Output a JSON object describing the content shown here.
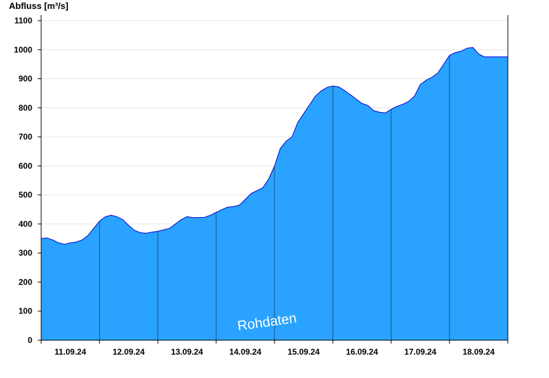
{
  "chart_data": {
    "type": "area",
    "ylabel": "Abfluss [m³/s]",
    "ylim": [
      0,
      1150
    ],
    "yticks": [
      0,
      100,
      200,
      300,
      400,
      500,
      600,
      700,
      800,
      900,
      1000,
      1100
    ],
    "xlim": [
      0,
      8
    ],
    "x_tick_labels": [
      "11.09.24",
      "12.09.24",
      "13.09.24",
      "14.09.24",
      "15.09.24",
      "16.09.24",
      "17.09.24",
      "18.09.24"
    ],
    "day_boundaries": [
      1,
      2,
      3,
      4,
      5,
      6,
      7
    ],
    "grid": true,
    "annotation": "Rohdaten",
    "colors": {
      "fill": "#29a3ff",
      "line": "#0000cc",
      "divider": "#1a4f80",
      "grid": "#e6e6e6"
    },
    "series": [
      {
        "x": [
          0,
          0.1,
          0.2,
          0.3,
          0.4,
          0.5,
          0.6,
          0.7,
          0.8,
          0.9,
          1.0,
          1.1,
          1.2,
          1.3,
          1.4,
          1.5,
          1.6,
          1.7,
          1.8,
          1.9,
          2.0,
          2.1,
          2.2,
          2.3,
          2.4,
          2.5,
          2.6,
          2.7,
          2.8,
          2.9,
          3.0,
          3.1,
          3.2,
          3.3,
          3.4,
          3.5,
          3.6,
          3.7,
          3.8,
          3.9,
          4.0,
          4.1,
          4.2,
          4.3,
          4.4,
          4.5,
          4.6,
          4.7,
          4.8,
          4.9,
          5.0,
          5.1,
          5.2,
          5.3,
          5.4,
          5.5,
          5.6,
          5.7,
          5.8,
          5.9,
          6.0,
          6.1,
          6.2,
          6.3,
          6.4,
          6.5,
          6.6,
          6.7,
          6.8,
          6.9,
          7.0,
          7.1,
          7.2,
          7.3,
          7.4,
          7.5,
          7.6,
          7.7,
          7.8,
          7.9,
          8.0
        ],
        "values": [
          350,
          352,
          345,
          335,
          330,
          335,
          338,
          345,
          360,
          385,
          410,
          425,
          430,
          425,
          415,
          395,
          378,
          370,
          368,
          372,
          375,
          380,
          385,
          400,
          415,
          425,
          422,
          422,
          423,
          430,
          440,
          450,
          458,
          460,
          465,
          485,
          505,
          515,
          525,
          555,
          600,
          660,
          685,
          700,
          750,
          780,
          810,
          840,
          858,
          870,
          875,
          872,
          860,
          845,
          830,
          815,
          808,
          790,
          785,
          782,
          795,
          805,
          812,
          822,
          840,
          880,
          895,
          905,
          920,
          950,
          980,
          990,
          995,
          1005,
          1008,
          985,
          975,
          975,
          975,
          975,
          975
        ]
      }
    ]
  }
}
